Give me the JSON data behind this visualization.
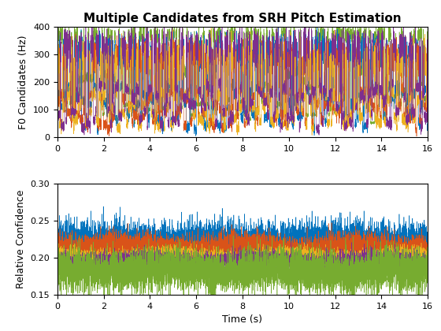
{
  "title": "Multiple Candidates from SRH Pitch Estimation",
  "ylabel1": "F0 Candidates (Hz)",
  "ylabel2": "Relative Confidence",
  "xlabel": "Time (s)",
  "xlim": [
    0,
    16
  ],
  "ylim1": [
    0,
    400
  ],
  "ylim2": [
    0.15,
    0.3
  ],
  "yticks1": [
    0,
    100,
    200,
    300,
    400
  ],
  "yticks2": [
    0.15,
    0.2,
    0.25,
    0.3
  ],
  "xticks": [
    0,
    2,
    4,
    6,
    8,
    10,
    12,
    14,
    16
  ],
  "n_samples": 6400,
  "duration": 16.0,
  "colors_top": [
    "#77AC30",
    "#0072BD",
    "#D95319",
    "#EDB120",
    "#7E2F8E"
  ],
  "colors_bottom": [
    "#0072BD",
    "#D95319",
    "#EDB120",
    "#7E2F8E",
    "#77AC30"
  ],
  "linewidth": 0.4,
  "figsize": [
    5.6,
    4.2
  ],
  "dpi": 100,
  "background": "#ffffff"
}
